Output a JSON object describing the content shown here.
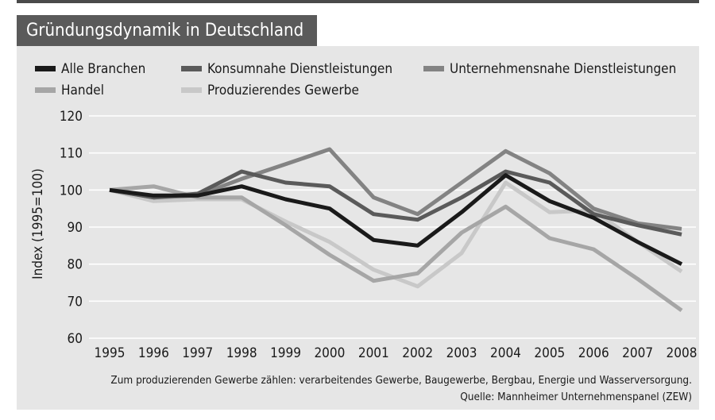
{
  "chart_data": {
    "type": "line",
    "title": "Gründungsdynamik in Deutschland",
    "ylabel": "Index (1995=100)",
    "xlabel": "",
    "ylim": [
      60,
      120
    ],
    "yticks": [
      60,
      70,
      80,
      90,
      100,
      110,
      120
    ],
    "x": [
      "1995",
      "1996",
      "1997",
      "1998",
      "1999",
      "2000",
      "2001",
      "2002",
      "2003",
      "2004",
      "2005",
      "2006",
      "2007",
      "2008"
    ],
    "grid": true,
    "legend_position": "top",
    "series": [
      {
        "name": "Alle Branchen",
        "color": "#1a1a1a",
        "values": [
          100,
          98.5,
          98.5,
          101,
          97.5,
          95,
          86.5,
          85,
          94,
          104,
          97,
          92.5,
          86,
          80
        ]
      },
      {
        "name": "Konsumnahe Dienstleistungen",
        "color": "#5a5a5a",
        "values": [
          100,
          98,
          99,
          105,
          102,
          101,
          93.5,
          92,
          98,
          105,
          102,
          93.5,
          90.5,
          88
        ]
      },
      {
        "name": "Unternehmensnahe Dienstleistungen",
        "color": "#838383",
        "values": [
          100,
          98,
          98.5,
          103,
          107,
          111,
          98,
          93.5,
          102,
          110.5,
          104.5,
          95,
          91,
          89.5
        ]
      },
      {
        "name": "Handel",
        "color": "#a6a6a6",
        "values": [
          100,
          101,
          98,
          98,
          90.5,
          82.5,
          75.5,
          77.5,
          88.5,
          95.5,
          87,
          84,
          76,
          67.5
        ]
      },
      {
        "name": "Produzierendes Gewerbe",
        "color": "#c8c8c8",
        "values": [
          100,
          97,
          97.5,
          97.5,
          91.5,
          86,
          78.5,
          74,
          83,
          102,
          94,
          94.5,
          86,
          78
        ]
      }
    ]
  },
  "footnote": "Zum produzierenden Gewerbe zählen: verarbeitendes Gewerbe, Baugewerbe, Bergbau, Energie und Wasserversorgung.",
  "source": "Quelle: Mannheimer Unternehmenspanel (ZEW)"
}
